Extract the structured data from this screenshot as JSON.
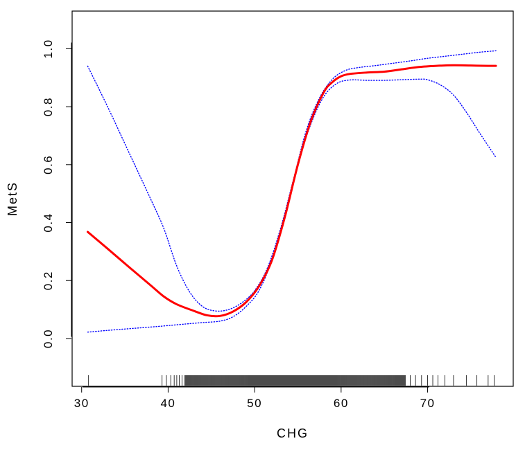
{
  "chart_data": {
    "type": "line",
    "title": "",
    "xlabel": "CHG",
    "ylabel": "MetS",
    "xlim": [
      28.9,
      79.9
    ],
    "ylim": [
      -0.165,
      1.13
    ],
    "x_ticks": [
      30,
      40,
      50,
      60,
      70
    ],
    "y_ticks": [
      0.0,
      0.2,
      0.4,
      0.6,
      0.8,
      1.0
    ],
    "x_tick_labels": [
      "30",
      "40",
      "50",
      "60",
      "70"
    ],
    "y_tick_labels": [
      "0.0",
      "0.2",
      "0.4",
      "0.6",
      "0.8",
      "1.0"
    ],
    "grid": false,
    "legend": "none",
    "series": [
      {
        "role": "estimate",
        "color": "#ff0000",
        "line_style": "solid",
        "x": [
          30.7,
          33.0,
          35.5,
          38.0,
          39.5,
          41.0,
          43.0,
          44.5,
          46.0,
          47.5,
          49.0,
          50.5,
          52.0,
          53.5,
          55.0,
          56.5,
          58.0,
          59.0,
          60.0,
          61.0,
          63.0,
          65.0,
          67.0,
          69.0,
          71.0,
          73.0,
          75.0,
          77.0,
          77.9
        ],
        "values": [
          0.368,
          0.31,
          0.246,
          0.183,
          0.145,
          0.118,
          0.095,
          0.08,
          0.078,
          0.093,
          0.125,
          0.18,
          0.27,
          0.42,
          0.6,
          0.75,
          0.85,
          0.885,
          0.905,
          0.913,
          0.918,
          0.921,
          0.929,
          0.937,
          0.941,
          0.943,
          0.942,
          0.941,
          0.941
        ]
      },
      {
        "role": "upper-ci",
        "color": "#0000ff",
        "line_style": "dotted",
        "x": [
          30.7,
          33.0,
          35.5,
          38.0,
          39.5,
          41.0,
          42.5,
          44.0,
          45.5,
          47.0,
          48.5,
          50.0,
          51.5,
          53.0,
          54.5,
          56.0,
          57.5,
          59.0,
          60.5,
          62.0,
          64.0,
          66.0,
          68.0,
          70.0,
          72.0,
          74.0,
          76.0,
          77.9
        ],
        "values": [
          0.94,
          0.8,
          0.64,
          0.48,
          0.38,
          0.25,
          0.16,
          0.11,
          0.095,
          0.1,
          0.123,
          0.165,
          0.245,
          0.38,
          0.55,
          0.72,
          0.83,
          0.895,
          0.925,
          0.935,
          0.942,
          0.95,
          0.958,
          0.967,
          0.974,
          0.981,
          0.988,
          0.993
        ]
      },
      {
        "role": "lower-ci",
        "color": "#0000ff",
        "line_style": "dotted",
        "x": [
          30.7,
          33.0,
          36.0,
          39.0,
          42.0,
          44.0,
          46.0,
          47.5,
          49.0,
          50.5,
          52.0,
          53.5,
          55.0,
          56.5,
          58.0,
          59.5,
          61.0,
          63.0,
          65.0,
          67.0,
          69.0,
          70.0,
          71.5,
          73.0,
          74.5,
          76.0,
          77.9
        ],
        "values": [
          0.022,
          0.028,
          0.035,
          0.042,
          0.05,
          0.055,
          0.06,
          0.075,
          0.11,
          0.165,
          0.27,
          0.42,
          0.6,
          0.74,
          0.835,
          0.88,
          0.892,
          0.891,
          0.891,
          0.893,
          0.895,
          0.893,
          0.875,
          0.84,
          0.78,
          0.71,
          0.625
        ]
      }
    ],
    "rug": {
      "color": "#000000",
      "isolated_x": [
        30.8,
        39.3,
        39.8,
        40.3,
        40.7,
        41.0,
        41.3,
        41.6,
        41.9,
        68.0,
        68.6,
        69.3,
        70.0,
        70.6,
        71.2,
        72.0,
        73.0,
        74.5,
        75.7,
        77.0,
        77.7
      ],
      "dense_range": [
        42.0,
        67.5
      ],
      "dense_step": 0.08
    }
  }
}
